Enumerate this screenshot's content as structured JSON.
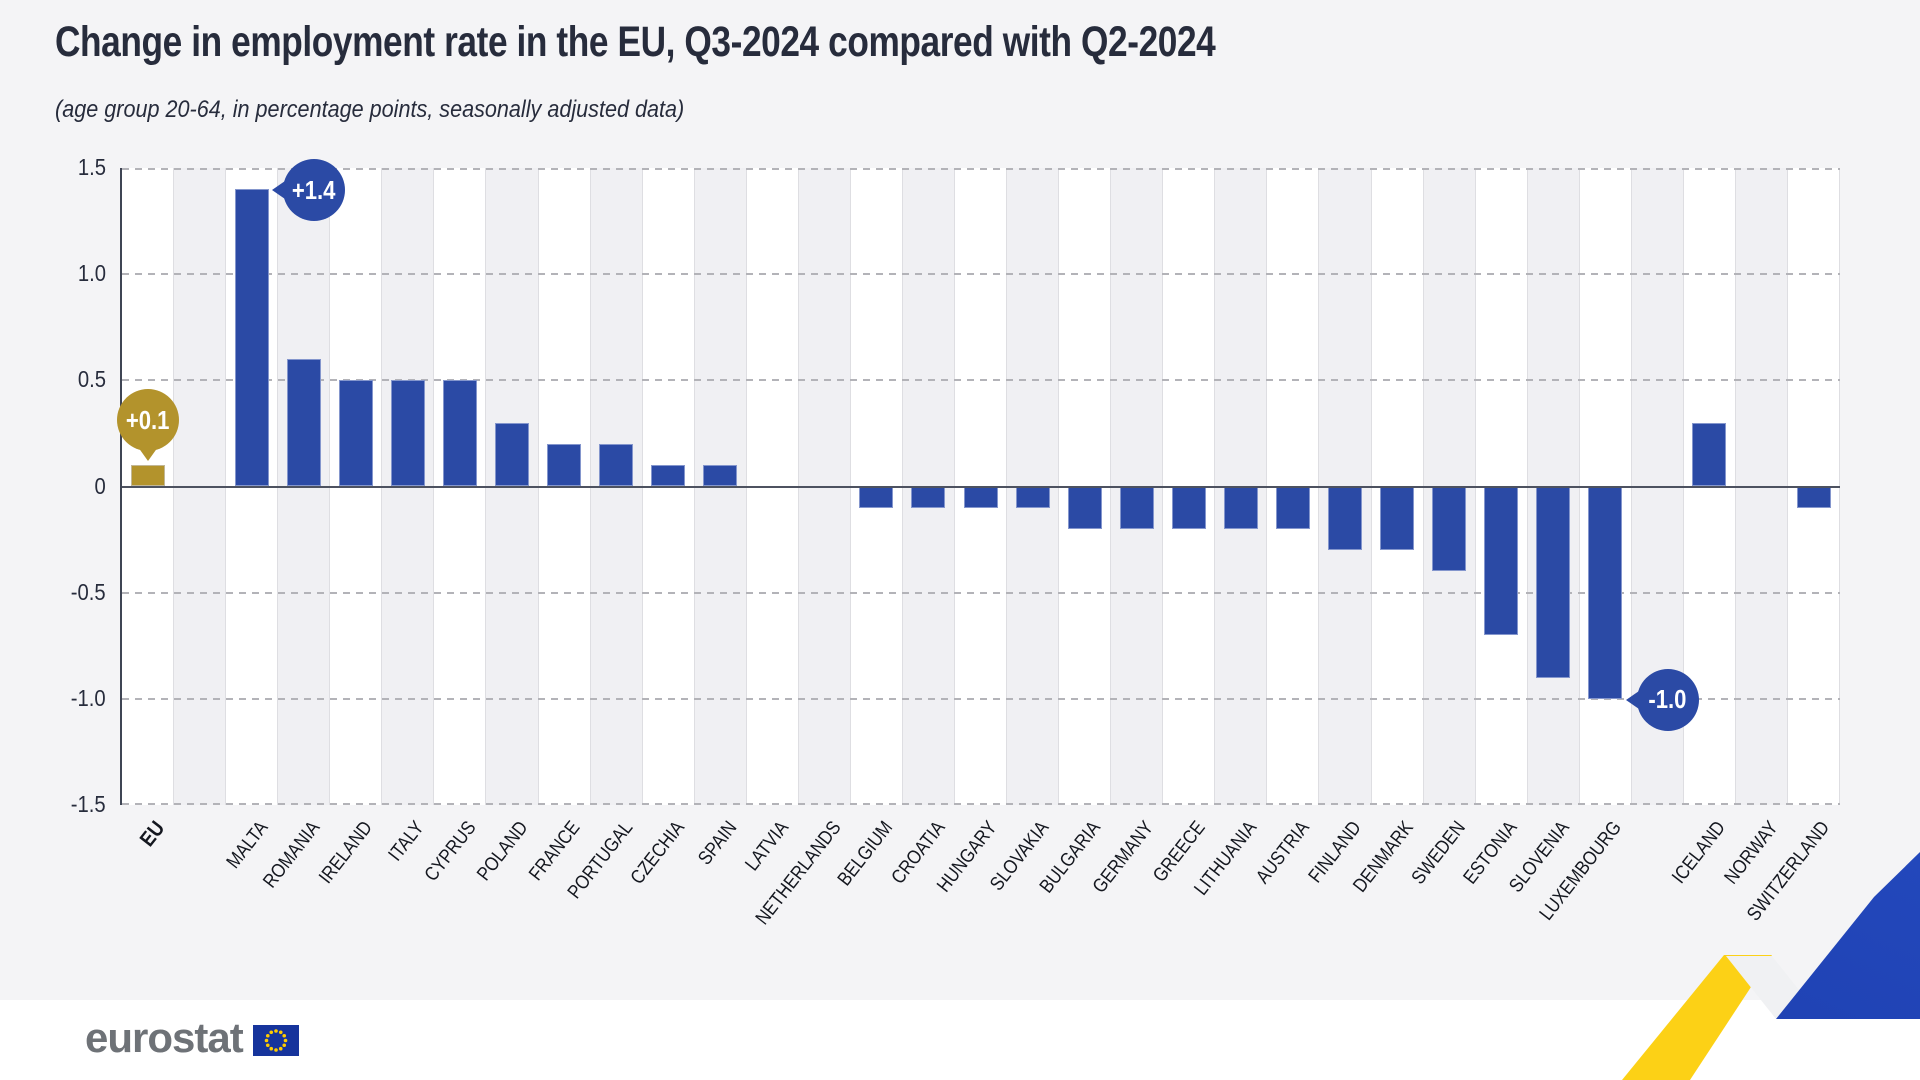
{
  "page": {
    "title": "Change in employment rate in the EU, Q3-2024 compared with Q2-2024",
    "subtitle": "(age group 20-64, in percentage points, seasonally adjusted data)"
  },
  "footer": {
    "brand": "eurostat"
  },
  "chart_data": {
    "type": "bar",
    "title": "Change in employment rate in the EU, Q3-2024 compared with Q2-2024",
    "subtitle": "(age group 20-64, in percentage points, seasonally adjusted data)",
    "ylabel": "percentage points",
    "ylim": [
      -1.5,
      1.5
    ],
    "ytick_labels": [
      "1.5",
      "1.0",
      "0.5",
      "0",
      "-0.5",
      "-1.0",
      "-1.5"
    ],
    "yticks": [
      1.5,
      1.0,
      0.5,
      0,
      -0.5,
      -1.0,
      -1.5
    ],
    "grid": "horizontal dashed at 0.5 steps, solid zero line, alternating column stripes",
    "legend": "none",
    "colors": {
      "bar": "#2b4aa5",
      "bar_highlight": "#b3932c",
      "canvas": "#f4f4f6",
      "stripe": "#f0f0f3",
      "title_text": "#272c3c"
    },
    "bars": [
      {
        "label": "EU",
        "value": 0.1,
        "highlight": true,
        "bold_label": true
      },
      {
        "spacer": true
      },
      {
        "label": "MALTA",
        "value": 1.4
      },
      {
        "label": "ROMANIA",
        "value": 0.6
      },
      {
        "label": "IRELAND",
        "value": 0.5
      },
      {
        "label": "ITALY",
        "value": 0.5
      },
      {
        "label": "CYPRUS",
        "value": 0.5
      },
      {
        "label": "POLAND",
        "value": 0.3
      },
      {
        "label": "FRANCE",
        "value": 0.2
      },
      {
        "label": "PORTUGAL",
        "value": 0.2
      },
      {
        "label": "CZECHIA",
        "value": 0.1
      },
      {
        "label": "SPAIN",
        "value": 0.1
      },
      {
        "label": "LATVIA",
        "value": 0.0
      },
      {
        "label": "NETHERLANDS",
        "value": 0.0
      },
      {
        "label": "BELGIUM",
        "value": -0.1
      },
      {
        "label": "CROATIA",
        "value": -0.1
      },
      {
        "label": "HUNGARY",
        "value": -0.1
      },
      {
        "label": "SLOVAKIA",
        "value": -0.1
      },
      {
        "label": "BULGARIA",
        "value": -0.2
      },
      {
        "label": "GERMANY",
        "value": -0.2
      },
      {
        "label": "GREECE",
        "value": -0.2
      },
      {
        "label": "LITHUANIA",
        "value": -0.2
      },
      {
        "label": "AUSTRIA",
        "value": -0.2
      },
      {
        "label": "FINLAND",
        "value": -0.3
      },
      {
        "label": "DENMARK",
        "value": -0.3
      },
      {
        "label": "SWEDEN",
        "value": -0.4
      },
      {
        "label": "ESTONIA",
        "value": -0.7
      },
      {
        "label": "SLOVENIA",
        "value": -0.9
      },
      {
        "label": "LUXEMBOURG",
        "value": -1.0
      },
      {
        "spacer": true
      },
      {
        "label": "ICELAND",
        "value": 0.3
      },
      {
        "label": "NORWAY",
        "value": 0.0
      },
      {
        "label": "SWITZERLAND",
        "value": -0.1
      }
    ],
    "callouts": [
      {
        "bar": "EU",
        "text": "+0.1",
        "color": "#b3932c",
        "tail": "down"
      },
      {
        "bar": "MALTA",
        "text": "+1.4",
        "color": "#2b4aa5",
        "tail": "left"
      },
      {
        "bar": "LUXEMBOURG",
        "text": "-1.0",
        "color": "#2b4aa5",
        "tail": "left"
      }
    ]
  }
}
